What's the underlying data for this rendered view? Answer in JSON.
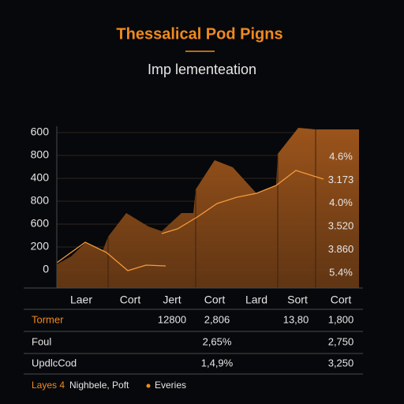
{
  "header": {
    "title": "Thessalical Pod Pigns",
    "subtitle": "Imp lementeation"
  },
  "chart": {
    "y_axis_labels": [
      "600",
      "800",
      "400",
      "800",
      "600",
      "200",
      "0"
    ],
    "side_labels": [
      "4.6%",
      "3.173",
      "4.0%",
      "3.520",
      "3.860",
      "5.4%"
    ],
    "x_axis_labels": [
      "Laer",
      "Cort",
      "Jert",
      "Cort",
      "Lard",
      "Sort",
      "Cort"
    ]
  },
  "table": {
    "rows": [
      [
        "Tormer",
        "12800",
        "2,806",
        "13,80",
        "1,800"
      ],
      [
        "Foul",
        "",
        "2,65%",
        "",
        "2,750"
      ],
      [
        "UpdlcCod",
        "",
        "1,4,9%",
        "",
        "3,250"
      ]
    ]
  },
  "footer": {
    "legend_label": "Layes 4",
    "text": "Nighbele, Poft",
    "item": "Everies"
  }
}
